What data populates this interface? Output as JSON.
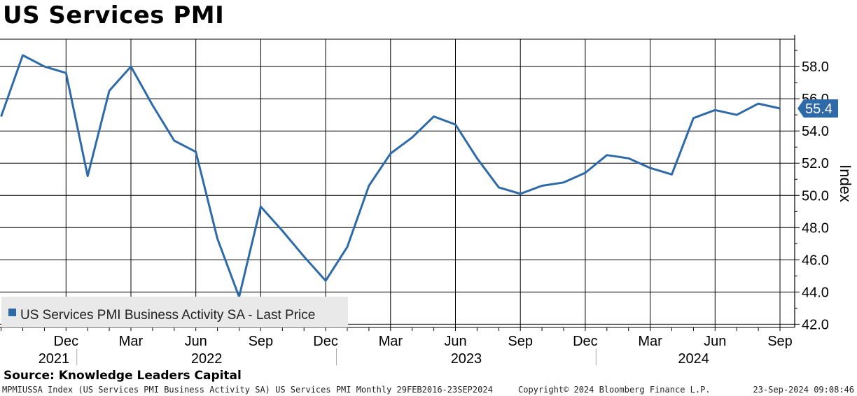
{
  "title": "US Services PMI",
  "source": "Source: Knowledge Leaders Capital",
  "footer": {
    "left": "MPMIUSSA Index (US Services PMI Business Activity SA) US Services PMI  Monthly 29FEB2016-23SEP2024",
    "center": "Copyright© 2024 Bloomberg Finance L.P.",
    "right": "23-Sep-2024 09:08:46"
  },
  "colors": {
    "series": "#2e6aa8",
    "grid": "#000000",
    "legend_bg": "#e9e9e9",
    "last_price_bg": "#2e6aa8"
  },
  "chart_data": {
    "type": "line",
    "title": "US Services PMI",
    "xlabel": "",
    "ylabel": "Index",
    "ylim": [
      41.8,
      59.7
    ],
    "y_ticks": [
      "42.0",
      "44.0",
      "46.0",
      "48.0",
      "50.0",
      "52.0",
      "54.0",
      "56.0",
      "58.0"
    ],
    "month_ticks": [
      "Dec",
      "Mar",
      "Jun",
      "Sep",
      "Dec",
      "Mar",
      "Jun",
      "Sep",
      "Dec",
      "Mar",
      "Jun",
      "Sep"
    ],
    "year_labels": [
      "2021",
      "2022",
      "2023",
      "2024"
    ],
    "grid": true,
    "legend": {
      "position": "bottom-left",
      "label": "US Services PMI Business Activity SA - Last Price"
    },
    "last_value_label": "55.4",
    "series": [
      {
        "name": "US Services PMI Business Activity SA - Last Price",
        "x": [
          "2021-09",
          "2021-10",
          "2021-11",
          "2021-12",
          "2022-01",
          "2022-02",
          "2022-03",
          "2022-04",
          "2022-05",
          "2022-06",
          "2022-07",
          "2022-08",
          "2022-09",
          "2022-10",
          "2022-11",
          "2022-12",
          "2023-01",
          "2023-02",
          "2023-03",
          "2023-04",
          "2023-05",
          "2023-06",
          "2023-07",
          "2023-08",
          "2023-09",
          "2023-10",
          "2023-11",
          "2023-12",
          "2024-01",
          "2024-02",
          "2024-03",
          "2024-04",
          "2024-05",
          "2024-06",
          "2024-07",
          "2024-08",
          "2024-09"
        ],
        "values": [
          54.9,
          58.7,
          58.0,
          57.6,
          51.2,
          56.5,
          58.0,
          55.6,
          53.4,
          52.7,
          47.3,
          43.7,
          49.3,
          47.8,
          46.2,
          44.7,
          46.8,
          50.6,
          52.6,
          53.6,
          54.9,
          54.4,
          52.3,
          50.5,
          50.1,
          50.6,
          50.8,
          51.4,
          52.5,
          52.3,
          51.7,
          51.3,
          54.8,
          55.3,
          55.0,
          55.7,
          55.4
        ]
      }
    ]
  }
}
